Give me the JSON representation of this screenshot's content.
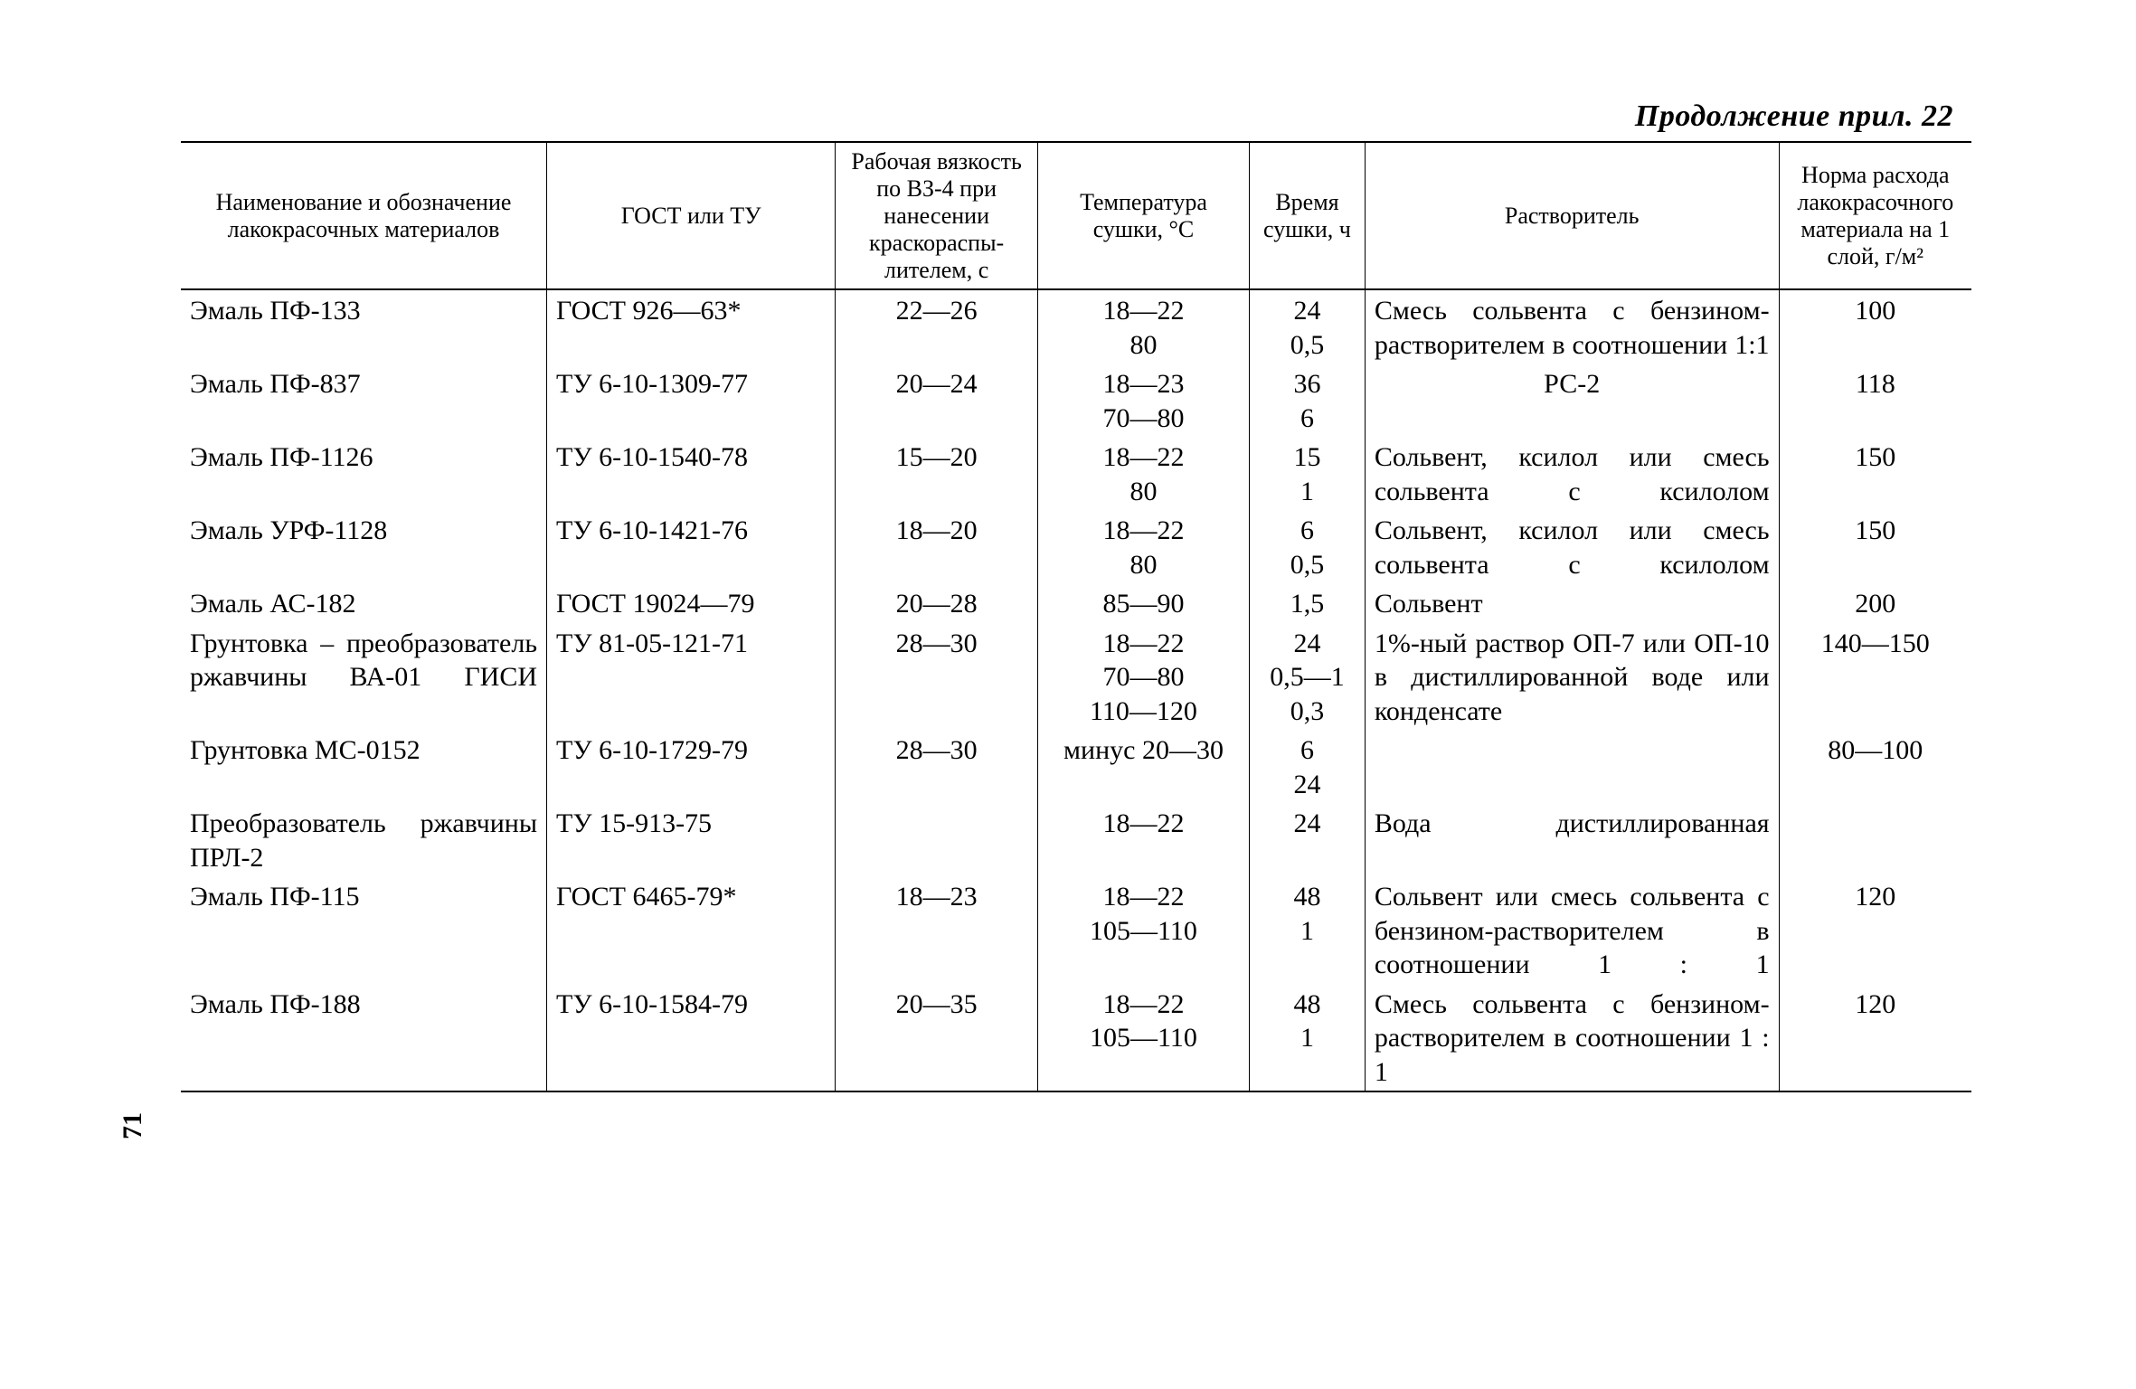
{
  "caption": "Продолжение прил. 22",
  "page_number": "71",
  "columns": [
    "Наименование и обозначение лакокрасочных материалов",
    "ГОСТ или ТУ",
    "Рабочая вяз­кость по ВЗ-4 при нанесении краскораспы­лителем, с",
    "Температура сушки, °С",
    "Время сушки, ч",
    "Растворитель",
    "Норма расхо­да лакокра­сочного мате­риала на 1 слой, г/м²"
  ],
  "rows": [
    {
      "name": "Эмаль ПФ-133",
      "gost": "ГОСТ 926—63*",
      "visc": "22—26",
      "temp": "18—22\n80",
      "time": "24\n0,5",
      "solvent": "Смесь сольвента с бен­зином-растворителем в соотношении 1:1",
      "norm": "100",
      "solvent_align": "justify"
    },
    {
      "name": "Эмаль ПФ-837",
      "gost": "ТУ 6-10-1309-77",
      "visc": "20—24",
      "temp": "18—23\n70—80",
      "time": "36\n6",
      "solvent": "РС-2",
      "norm": "118",
      "solvent_align": "center"
    },
    {
      "name": "Эмаль ПФ-1126",
      "gost": "ТУ 6-10-1540-78",
      "visc": "15—20",
      "temp": "18—22\n80",
      "time": "15\n1",
      "solvent": "Сольвент, ксилол или смесь сольвента с кси­лолом",
      "norm": "150",
      "solvent_align": "justify"
    },
    {
      "name": "Эмаль УРФ-1128",
      "gost": "ТУ 6-10-1421-76",
      "visc": "18—20",
      "temp": "18—22\n80",
      "time": "6\n0,5",
      "solvent": "Сольвент, ксилол или смесь сольвента с ксило­лом",
      "norm": "150",
      "solvent_align": "justify"
    },
    {
      "name": "Эмаль АС-182",
      "gost": "ГОСТ 19024—79",
      "visc": "20—28",
      "temp": "85—90",
      "time": "1,5",
      "solvent": "Сольвент",
      "norm": "200",
      "solvent_align": "left"
    },
    {
      "name": "Грунтовка – преобразова­тель ржавчины ВА-01 ГИСИ",
      "gost": "ТУ 81-05-121-71",
      "visc": "28—30",
      "temp": "18—22\n70—80\n110—120",
      "time": "24\n0,5—1\n0,3",
      "solvent": "1%-ный раствор ОП-7 или ОП-10 в дистилли­рованной воде или кон­денсате",
      "norm": "140—150",
      "solvent_align": "justify",
      "name_align": "justify"
    },
    {
      "name": "Грунтовка МС-0152",
      "gost": "ТУ 6-10-1729-79",
      "visc": "28—30",
      "temp": "минус 20—30",
      "time": "6\n24",
      "solvent": "",
      "norm": "80—100",
      "solvent_align": "left"
    },
    {
      "name": "Преобразователь ржав­чины ПРЛ-2",
      "gost": "ТУ 15-913-75",
      "visc": "",
      "temp": "18—22",
      "time": "24",
      "solvent": "Вода дистиллированная",
      "norm": "",
      "solvent_align": "justify",
      "name_align": "justify"
    },
    {
      "name": "Эмаль ПФ-115",
      "gost": "ГОСТ 6465-79*",
      "visc": "18—23",
      "temp": "18—22\n105—110",
      "time": "48\n1",
      "solvent": "Сольвент или смесь сольвента с бензином-растворителем в соотно­шении 1 : 1",
      "norm": "120",
      "solvent_align": "justify"
    },
    {
      "name": "Эмаль ПФ-188",
      "gost": "ТУ 6-10-1584-79",
      "visc": "20—35",
      "temp": "18—22\n105—110",
      "time": "48\n1",
      "solvent": "Смесь сольвента с бен­зином-растворителем в соотношении 1 : 1",
      "norm": "120",
      "solvent_align": "justify"
    }
  ]
}
